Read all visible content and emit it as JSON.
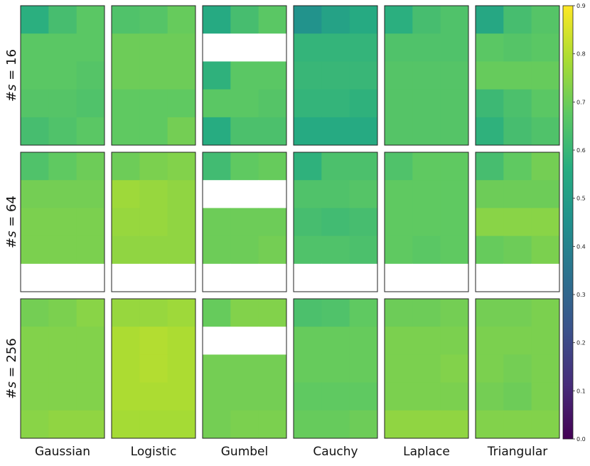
{
  "chart_data": {
    "type": "heatmap",
    "title": "",
    "colormap": "viridis",
    "colorbar": {
      "range": [
        0.0,
        0.9
      ],
      "ticks": [
        "0.0",
        "0.1",
        "0.2",
        "0.3",
        "0.4",
        "0.5",
        "0.6",
        "0.7",
        "0.8",
        "0.9"
      ]
    },
    "columns": [
      "Gaussian",
      "Logistic",
      "Gumbel",
      "Cauchy",
      "Laplace",
      "Triangular"
    ],
    "rows": [
      {
        "label": "#s = 16",
        "label_base": "#",
        "label_var": "s",
        "label_eq": " = 16",
        "panels": [
          [
            [
              0.57,
              0.63,
              0.67
            ],
            [
              0.67,
              0.67,
              0.67
            ],
            [
              0.67,
              0.67,
              0.66
            ],
            [
              0.66,
              0.66,
              0.65
            ],
            [
              0.63,
              0.65,
              0.67
            ]
          ],
          [
            [
              0.65,
              0.66,
              0.69
            ],
            [
              0.7,
              0.7,
              0.7
            ],
            [
              0.7,
              0.7,
              0.7
            ],
            [
              0.68,
              0.68,
              0.68
            ],
            [
              0.68,
              0.68,
              0.71
            ]
          ],
          [
            [
              0.55,
              0.63,
              0.67
            ],
            [
              null,
              null,
              null
            ],
            [
              0.58,
              0.67,
              0.67
            ],
            [
              0.67,
              0.67,
              0.66
            ],
            [
              0.56,
              0.64,
              0.64
            ]
          ],
          [
            [
              0.46,
              0.52,
              0.55
            ],
            [
              0.59,
              0.59,
              0.59
            ],
            [
              0.6,
              0.6,
              0.6
            ],
            [
              0.59,
              0.59,
              0.58
            ],
            [
              0.55,
              0.55,
              0.55
            ]
          ],
          [
            [
              0.57,
              0.63,
              0.65
            ],
            [
              0.65,
              0.65,
              0.65
            ],
            [
              0.66,
              0.66,
              0.66
            ],
            [
              0.66,
              0.66,
              0.66
            ],
            [
              0.66,
              0.66,
              0.66
            ]
          ],
          [
            [
              0.54,
              0.63,
              0.66
            ],
            [
              0.67,
              0.66,
              0.67
            ],
            [
              0.69,
              0.69,
              0.69
            ],
            [
              0.61,
              0.64,
              0.67
            ],
            [
              0.58,
              0.63,
              0.65
            ]
          ]
        ]
      },
      {
        "label": "#s = 64",
        "label_base": "#",
        "label_var": "s",
        "label_eq": " = 64",
        "panels": [
          [
            [
              0.65,
              0.68,
              0.7
            ],
            [
              0.71,
              0.71,
              0.71
            ],
            [
              0.72,
              0.72,
              0.72
            ],
            [
              0.72,
              0.72,
              0.72
            ],
            [
              null,
              null,
              null
            ]
          ],
          [
            [
              0.7,
              0.72,
              0.73
            ],
            [
              0.77,
              0.76,
              0.75
            ],
            [
              0.76,
              0.76,
              0.75
            ],
            [
              0.75,
              0.75,
              0.75
            ],
            [
              null,
              null,
              null
            ]
          ],
          [
            [
              0.62,
              0.68,
              0.69
            ],
            [
              null,
              null,
              null
            ],
            [
              0.7,
              0.7,
              0.7
            ],
            [
              0.7,
              0.7,
              0.71
            ],
            [
              null,
              null,
              null
            ]
          ],
          [
            [
              0.58,
              0.64,
              0.64
            ],
            [
              0.65,
              0.65,
              0.66
            ],
            [
              0.63,
              0.62,
              0.63
            ],
            [
              0.65,
              0.65,
              0.64
            ],
            [
              null,
              null,
              null
            ]
          ],
          [
            [
              0.65,
              0.68,
              0.68
            ],
            [
              0.68,
              0.68,
              0.68
            ],
            [
              0.68,
              0.68,
              0.68
            ],
            [
              0.68,
              0.67,
              0.68
            ],
            [
              null,
              null,
              null
            ]
          ],
          [
            [
              0.63,
              0.68,
              0.71
            ],
            [
              0.7,
              0.7,
              0.7
            ],
            [
              0.74,
              0.74,
              0.74
            ],
            [
              0.69,
              0.7,
              0.72
            ],
            [
              null,
              null,
              null
            ]
          ]
        ]
      },
      {
        "label": "#s = 256",
        "label_base": "#",
        "label_var": "s",
        "label_eq": " = 256",
        "panels": [
          [
            [
              0.71,
              0.72,
              0.74
            ],
            [
              0.73,
              0.73,
              0.73
            ],
            [
              0.73,
              0.73,
              0.73
            ],
            [
              0.73,
              0.73,
              0.73
            ],
            [
              0.74,
              0.75,
              0.75
            ]
          ],
          [
            [
              0.76,
              0.76,
              0.77
            ],
            [
              0.79,
              0.8,
              0.79
            ],
            [
              0.79,
              0.8,
              0.79
            ],
            [
              0.79,
              0.79,
              0.79
            ],
            [
              0.78,
              0.78,
              0.78
            ]
          ],
          [
            [
              0.69,
              0.73,
              0.73
            ],
            [
              null,
              null,
              null
            ],
            [
              0.71,
              0.71,
              0.71
            ],
            [
              0.71,
              0.71,
              0.71
            ],
            [
              0.71,
              0.72,
              0.72
            ]
          ],
          [
            [
              0.64,
              0.65,
              0.68
            ],
            [
              0.69,
              0.69,
              0.69
            ],
            [
              0.69,
              0.69,
              0.69
            ],
            [
              0.68,
              0.68,
              0.68
            ],
            [
              0.69,
              0.69,
              0.7
            ]
          ],
          [
            [
              0.7,
              0.7,
              0.71
            ],
            [
              0.72,
              0.72,
              0.72
            ],
            [
              0.72,
              0.72,
              0.73
            ],
            [
              0.72,
              0.72,
              0.72
            ],
            [
              0.75,
              0.75,
              0.75
            ]
          ],
          [
            [
              0.71,
              0.71,
              0.72
            ],
            [
              0.72,
              0.72,
              0.72
            ],
            [
              0.72,
              0.71,
              0.72
            ],
            [
              0.71,
              0.7,
              0.72
            ],
            [
              0.73,
              0.73,
              0.73
            ]
          ]
        ]
      }
    ]
  }
}
